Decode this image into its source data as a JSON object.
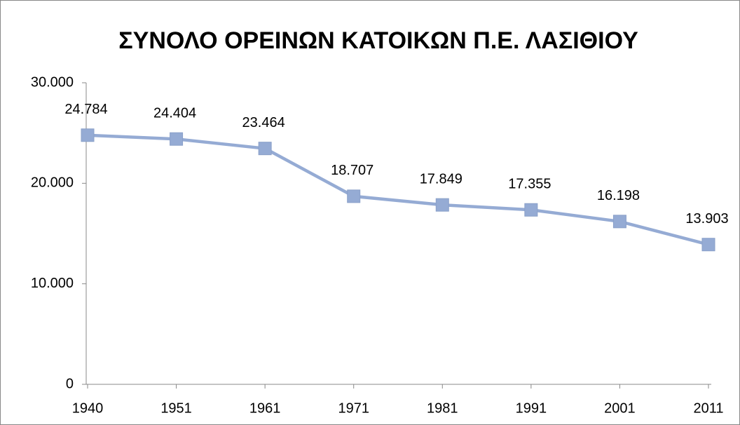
{
  "chart_data": {
    "type": "line",
    "title": "ΣΥΝΟΛΟ ΟΡΕΙΝΩΝ ΚΑΤΟΙΚΩΝ Π.Ε. ΛΑΣΙΘΙΟΥ",
    "categories": [
      "1940",
      "1951",
      "1961",
      "1971",
      "1981",
      "1991",
      "2001",
      "2011"
    ],
    "values": [
      24784,
      24404,
      23464,
      18707,
      17849,
      17355,
      16198,
      13903
    ],
    "value_labels": [
      "24.784",
      "24.404",
      "23.464",
      "18.707",
      "17.849",
      "17.355",
      "16.198",
      "13.903"
    ],
    "color": "#95abd4",
    "ylim": [
      0,
      30000
    ],
    "yticks": [
      0,
      {
        "value": 10000,
        "label": "10.000"
      },
      {
        "value": 20000,
        "label": "20.000"
      },
      {
        "value": 30000,
        "label": "30.000"
      }
    ],
    "grid": false
  }
}
